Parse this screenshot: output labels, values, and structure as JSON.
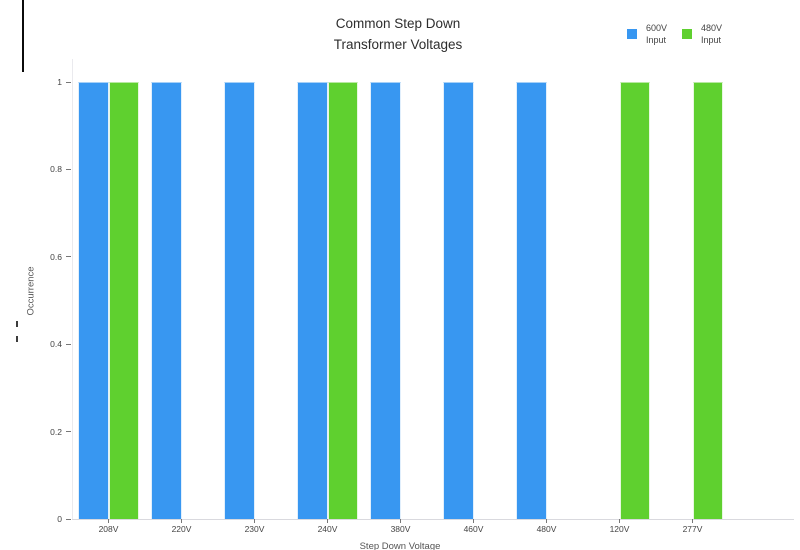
{
  "title": {
    "line1": "Common Step Down",
    "line2": "Transformer Voltages"
  },
  "legend": {
    "items": [
      {
        "label_line1": "600V",
        "label_line2": "Input",
        "color": "#3897F1"
      },
      {
        "label_line1": "480V",
        "label_line2": "Input",
        "color": "#5FD02F"
      }
    ]
  },
  "chart_data": {
    "type": "bar",
    "title": "Common Step Down Transformer Voltages",
    "xlabel": "Step Down Voltage",
    "ylabel": "Occurrence",
    "categories": [
      "208V",
      "220V",
      "230V",
      "240V",
      "380V",
      "460V",
      "480V",
      "120V",
      "277V"
    ],
    "series": [
      {
        "name": "600V Input",
        "color": "#3897F1",
        "values": [
          1,
          1,
          1,
          1,
          1,
          1,
          1,
          null,
          null
        ]
      },
      {
        "name": "480V Input",
        "color": "#5FD02F",
        "values": [
          1,
          null,
          null,
          1,
          null,
          null,
          null,
          1,
          1
        ]
      }
    ],
    "ylim": [
      0,
      1
    ],
    "yticks": [
      0,
      0.2,
      0.4,
      0.6,
      0.8,
      1
    ],
    "grid": false,
    "legend_position": "top-right",
    "bar_mode": "grouped"
  }
}
